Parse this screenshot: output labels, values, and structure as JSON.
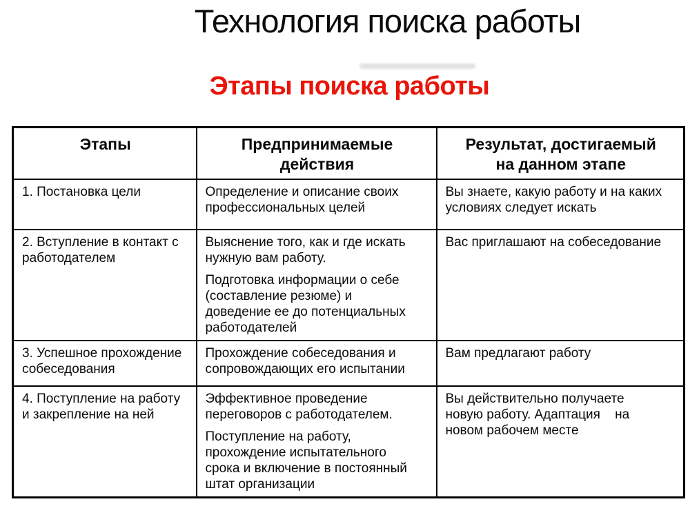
{
  "page": {
    "title": "Технология поиска работы",
    "subtitle": "Этапы поиска работы",
    "subtitle_color": "#e91409",
    "background_color": "#ffffff",
    "text_color": "#0a0a0a"
  },
  "table": {
    "headers": {
      "stages": "Этапы",
      "actions": "Предпринимаемые\nдействия",
      "results": "Результат, достигаемый\nна данном этапе"
    },
    "rows": [
      {
        "stage": "1. Постановка цели",
        "actions": [
          "Определение и описание своих\nпрофессиональных целей"
        ],
        "results": [
          "Вы знаете, какую работу и на каких\nусловиях следует искать"
        ]
      },
      {
        "stage": "2. Вступление в контакт с\nработодателем",
        "actions": [
          "Выяснение того, как и где искать\nнужную вам работу.",
          "Подготовка информации о себе\n(составление резюме) и\nдоведение ее до потенциальных\nработодателей"
        ],
        "results": [
          "Вас приглашают на собеседование"
        ]
      },
      {
        "stage": "3. Успешное прохождение\nсобеседования",
        "actions": [
          "Прохождение собеседования и\nсопровождающих его испытании"
        ],
        "results": [
          "Вам предлагают работу"
        ]
      },
      {
        "stage": "4. Поступление на работу\nи закрепление на ней",
        "actions": [
          "Эффективное проведение\nпереговоров с работодателем.",
          "Поступление на работу,\nпрохождение испытательного\nсрока и включение в постоянный\nштат организации"
        ],
        "results": [
          "Вы действительно получаете\nновую работу. Адаптация    на\nновом рабочем месте"
        ]
      }
    ]
  }
}
